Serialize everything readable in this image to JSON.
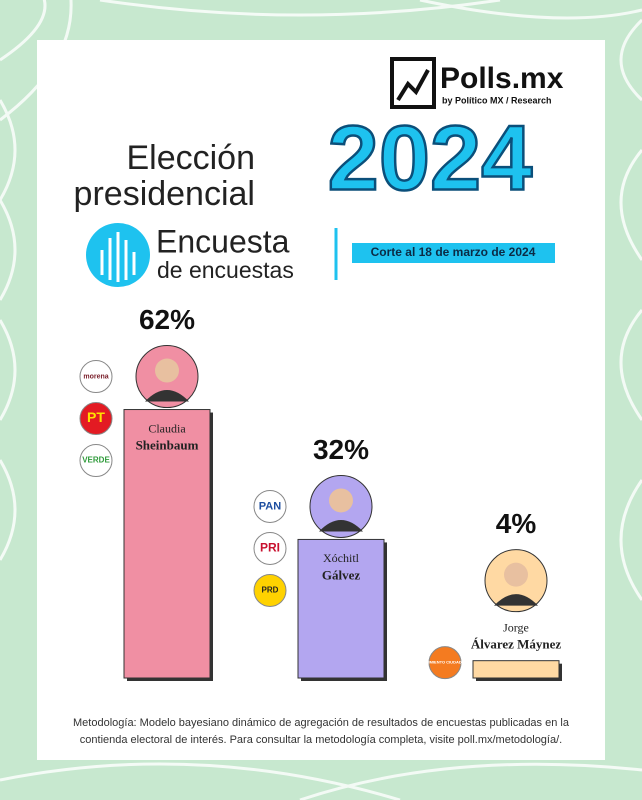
{
  "header": {
    "brand": "Polls.mx",
    "byline": "by Político MX / Research"
  },
  "title": {
    "line1": "Elección",
    "line2": "presidencial",
    "year": "2024"
  },
  "subtitle": {
    "line1": "Encuesta",
    "line2": "de encuestas"
  },
  "date_note": "Corte al 18 de marzo de 2024",
  "chart_data": {
    "type": "bar",
    "candidates": [
      {
        "first": "Claudia",
        "last": "Sheinbaum",
        "parties": [
          "morena",
          "PT",
          "VERDE"
        ]
      },
      {
        "first": "Xóchitl",
        "last": "Gálvez",
        "parties": [
          "PAN",
          "PRI",
          "PRD"
        ]
      },
      {
        "first": "Jorge",
        "last": "Álvarez Máynez",
        "parties": [
          "MOVIMIENTO CIUDADANO"
        ]
      }
    ],
    "values": [
      62,
      32,
      4
    ],
    "value_labels": [
      "62%",
      "32%",
      "4%"
    ],
    "colors": [
      "#f08fa3",
      "#b3a6f0",
      "#ffd9a3"
    ]
  },
  "footer": {
    "methodology": [
      "Metodología: Modelo bayesiano dinámico de agregación de resultados de encuestas publicadas en la",
      "contienda electoral de interés. Para consultar la metodología completa, visite poll.mx/metodología/."
    ]
  }
}
